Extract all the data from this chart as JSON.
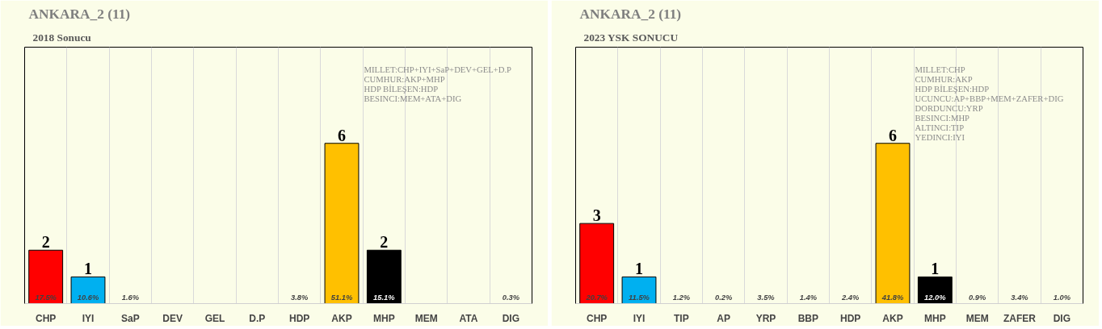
{
  "chart_data": [
    {
      "type": "bar",
      "title": "ANKARA_2 (11)",
      "subtitle": "2018 Sonucu",
      "categories": [
        "CHP",
        "IYI",
        "SaP",
        "DEV",
        "GEL",
        "D.P",
        "HDP",
        "AKP",
        "MHP",
        "MEM",
        "ATA",
        "DIG"
      ],
      "values": [
        2,
        1,
        0,
        0,
        0,
        0,
        0,
        6,
        2,
        0,
        0,
        0
      ],
      "colors": [
        "#ff0000",
        "#00b0f0",
        "#ffffff",
        "#ffffff",
        "#ffffff",
        "#ffffff",
        "#ffffff",
        "#ffc000",
        "#000000",
        "#ffffff",
        "#ffffff",
        "#ffffff"
      ],
      "value_labels": [
        "2",
        "1",
        null,
        null,
        null,
        null,
        null,
        "6",
        "2",
        null,
        null,
        null
      ],
      "grid": "x",
      "tick_labels": "x",
      "annotations": [
        "MILLET:CHP+IYI+SaP+DEV+GEL+D.P",
        "CUMHUR:AKP+MHP",
        "HDP BİLEŞEN:HDP",
        "BESINCI:MEM+ATA+DIG",
        {
          "text": "17.5%",
          "x": "CHP",
          "y": 0
        },
        {
          "text": "10.6%",
          "x": "IYI",
          "y": 0
        },
        {
          "text": "1.6%",
          "x": "SaP",
          "y": 0
        },
        {
          "text": "3.8%",
          "x": "HDP",
          "y": 0
        },
        {
          "text": "51.1%",
          "x": "AKP",
          "y": 0
        },
        {
          "text": "15.1%",
          "x": "MHP",
          "y": 0
        },
        {
          "text": "0.3%",
          "x": "DIG",
          "y": 0
        }
      ]
    },
    {
      "type": "bar",
      "title": "ANKARA_2 (11)",
      "subtitle": "2023 YSK SONUCU",
      "categories": [
        "CHP",
        "IYI",
        "TIP",
        "AP",
        "YRP",
        "BBP",
        "HDP",
        "AKP",
        "MHP",
        "MEM",
        "ZAFER",
        "DIG"
      ],
      "values": [
        3,
        1,
        0,
        0,
        0,
        0,
        0,
        6,
        1,
        0,
        0,
        0
      ],
      "colors": [
        "#ff0000",
        "#00b0f0",
        "#ffffff",
        "#ffffff",
        "#ffffff",
        "#ffffff",
        "#ffffff",
        "#ffc000",
        "#000000",
        "#ffffff",
        "#ffffff",
        "#ffffff"
      ],
      "value_labels": [
        "3",
        "1",
        null,
        null,
        null,
        null,
        null,
        "6",
        "1",
        null,
        null,
        null
      ],
      "grid": "x",
      "tick_labels": "x",
      "annotations": [
        "MILLET:CHP",
        "CUMHUR:AKP",
        "HDP BİLEŞEN:HDP",
        "UCUNCU:AP+BBP+MEM+ZAFER+DIG",
        "DORDUNCU:YRP",
        "BESINCI:MHP",
        "ALTINCI:TIP",
        "YEDINCI:IYI",
        {
          "text": "20.7%",
          "x": "CHP",
          "y": 0
        },
        {
          "text": "11.5%",
          "x": "IYI",
          "y": 0
        },
        {
          "text": "1.2%",
          "x": "TIP",
          "y": 0
        },
        {
          "text": "0.2%",
          "x": "AP",
          "y": 0
        },
        {
          "text": "3.5%",
          "x": "YRP",
          "y": 0
        },
        {
          "text": "1.4%",
          "x": "BBP",
          "y": 0
        },
        {
          "text": "2.4%",
          "x": "HDP",
          "y": 0
        },
        {
          "text": "41.8%",
          "x": "AKP",
          "y": 0
        },
        {
          "text": "12.0%",
          "x": "MHP",
          "y": 0
        },
        {
          "text": "0.9%",
          "x": "MEM",
          "y": 0
        },
        {
          "text": "3.4%",
          "x": "ZAFER",
          "y": 0
        },
        {
          "text": "1.0%",
          "x": "DIG",
          "y": 0
        }
      ]
    }
  ]
}
